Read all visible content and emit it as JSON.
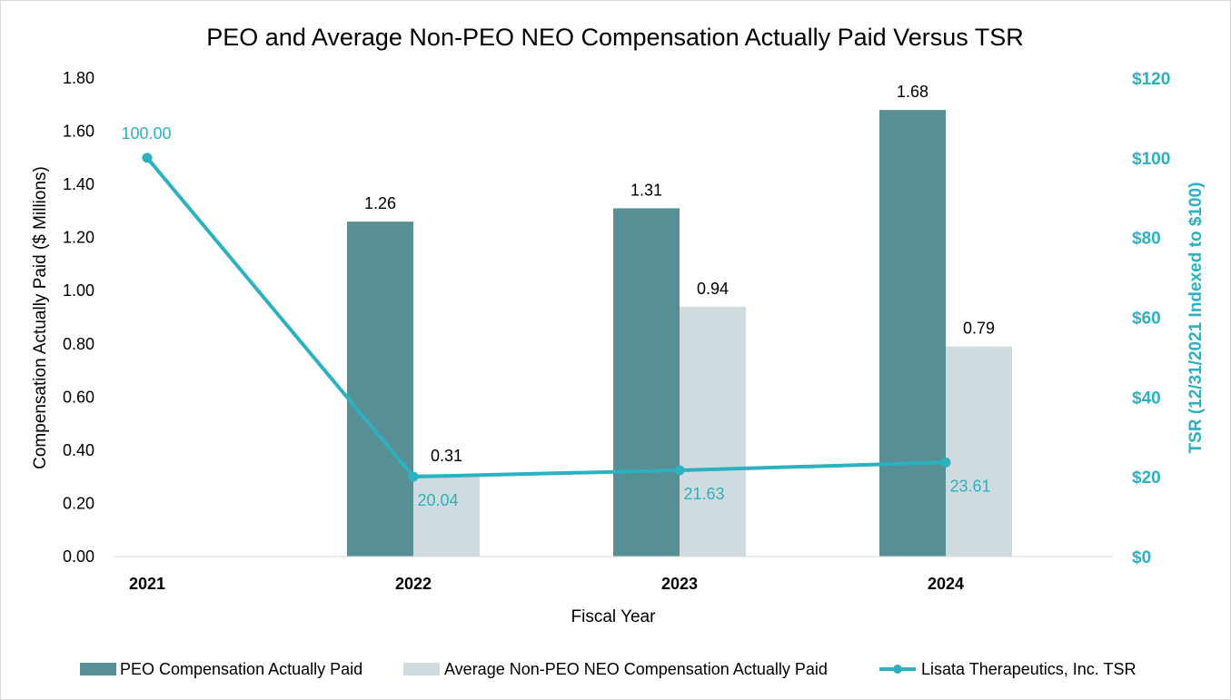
{
  "chart_data": {
    "type": "bar",
    "title": "PEO and Average Non-PEO NEO Compensation Actually Paid Versus TSR",
    "xlabel": "Fiscal Year",
    "ylabel": "Compensation Actually Paid ($ Millions)",
    "y2label": "TSR (12/31/2021 Indexed to $100)",
    "categories": [
      "2021",
      "2022",
      "2023",
      "2024"
    ],
    "ylim": [
      0,
      1.8
    ],
    "y2lim": [
      0,
      120
    ],
    "yticks": [
      "0.00",
      "0.20",
      "0.40",
      "0.60",
      "0.80",
      "1.00",
      "1.20",
      "1.40",
      "1.60",
      "1.80"
    ],
    "y2ticks": [
      "$0",
      "$20",
      "$40",
      "$60",
      "$80",
      "$100",
      "$120"
    ],
    "series": [
      {
        "name": "PEO Compensation Actually Paid",
        "kind": "bar",
        "color": "#578f95",
        "values": [
          null,
          1.26,
          1.31,
          1.68
        ],
        "labels": [
          "",
          "1.26",
          "1.31",
          "1.68"
        ]
      },
      {
        "name": "Average Non-PEO NEO Compensation Actually Paid",
        "kind": "bar",
        "color": "#cfdbde",
        "values": [
          null,
          0.31,
          0.94,
          0.79
        ],
        "labels": [
          "",
          "0.31",
          "0.94",
          "0.79"
        ]
      },
      {
        "name": "Lisata Therapeutics, Inc. TSR",
        "kind": "line",
        "axis": "right",
        "color": "#2bb1bf",
        "values": [
          100.0,
          20.04,
          21.63,
          23.61
        ],
        "labels": [
          "100.00",
          "20.04",
          "21.63",
          "23.61"
        ]
      }
    ],
    "grid": false,
    "legend_position": "bottom"
  }
}
